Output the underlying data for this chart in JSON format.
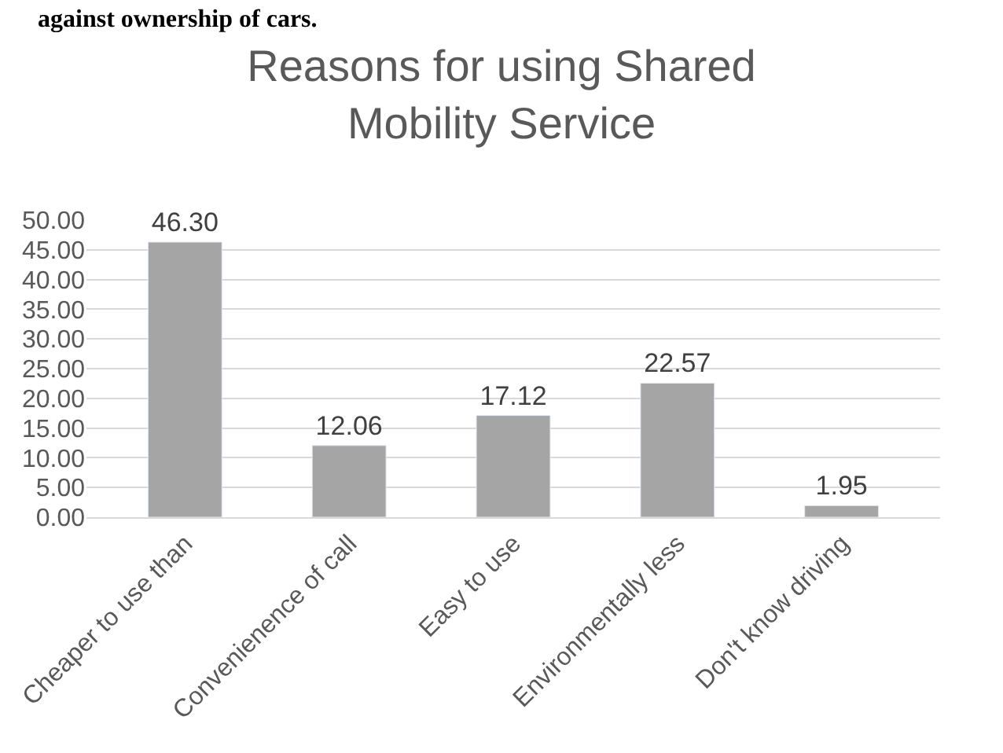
{
  "chart_data": {
    "type": "bar",
    "title": "Reasons for using Shared Mobility Service",
    "annotations": [
      "against ownership of cars."
    ],
    "categories": [
      "Cheaper to use than",
      "Convenienence of call",
      "Easy to use",
      "Environmentally less",
      "Don't know driving"
    ],
    "values": [
      46.3,
      12.06,
      17.12,
      22.57,
      1.95
    ],
    "value_labels": [
      "46.30",
      "12.06",
      "17.12",
      "22.57",
      "1.95"
    ],
    "color": "#a5a5a5",
    "ylim": [
      0,
      50
    ],
    "yticks": [
      {
        "value": 0,
        "label": "0.00"
      },
      {
        "value": 5,
        "label": "5.00"
      },
      {
        "value": 10,
        "label": "10.00"
      },
      {
        "value": 15,
        "label": "15.00"
      },
      {
        "value": 20,
        "label": "20.00"
      },
      {
        "value": 25,
        "label": "25.00"
      },
      {
        "value": 30,
        "label": "30.00"
      },
      {
        "value": 35,
        "label": "35.00"
      },
      {
        "value": 40,
        "label": "40.00"
      },
      {
        "value": 45,
        "label": "45.00"
      },
      {
        "value": 50,
        "label": "50.00"
      }
    ],
    "grid": "y"
  }
}
